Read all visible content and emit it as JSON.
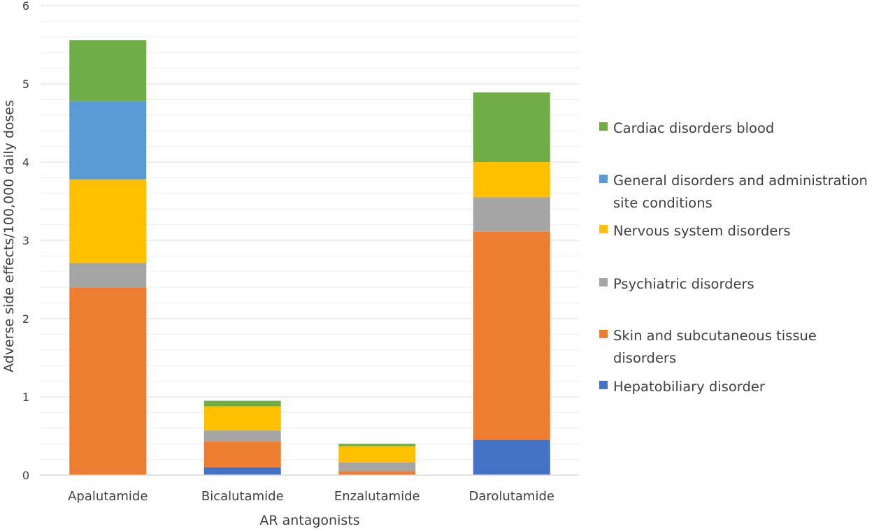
{
  "chart_data": {
    "type": "bar",
    "stacked": true,
    "title": "",
    "xlabel": "AR antagonists",
    "ylabel": "Adverse side effects/100,000 daily doses",
    "ylim": [
      0,
      6
    ],
    "yticks": [
      "0",
      "1",
      "2",
      "3",
      "4",
      "5",
      "6"
    ],
    "ytick_values": [
      0,
      1,
      2,
      3,
      4,
      5,
      6
    ],
    "grid": true,
    "legend_position": "right",
    "categories": [
      "Apalutamide",
      "Bicalutamide",
      "Enzalutamide",
      "Darolutamide"
    ],
    "series": [
      {
        "name": "Hepatobiliary disorder",
        "color": "#4472C4",
        "values": [
          0,
          0.1,
          0,
          0.45
        ]
      },
      {
        "name": "Skin and subcutaneous tissue disorders",
        "color": "#ED7D31",
        "values": [
          2.4,
          0.33,
          0.05,
          2.66
        ]
      },
      {
        "name": "Psychiatric disorders",
        "color": "#A5A5A5",
        "values": [
          0.31,
          0.14,
          0.11,
          0.44
        ]
      },
      {
        "name": "Nervous system disorders",
        "color": "#FFC000",
        "values": [
          1.07,
          0.31,
          0.21,
          0.45
        ]
      },
      {
        "name": "General disorders and administration site conditions",
        "color": "#5B9BD5",
        "values": [
          1.0,
          0,
          0,
          0
        ]
      },
      {
        "name": "Cardiac disorders blood",
        "color": "#70AD47",
        "values": [
          0.78,
          0.07,
          0.03,
          0.89
        ]
      }
    ],
    "legend_order": [
      {
        "series_index": 5,
        "lines": [
          "Cardiac disorders blood"
        ]
      },
      {
        "series_index": 4,
        "lines": [
          "General disorders and administration",
          "site conditions"
        ]
      },
      {
        "series_index": 3,
        "lines": [
          "Nervous system disorders"
        ]
      },
      {
        "series_index": 2,
        "lines": [
          "Psychiatric disorders"
        ]
      },
      {
        "series_index": 1,
        "lines": [
          "Skin and subcutaneous tissue",
          "disorders"
        ]
      },
      {
        "series_index": 0,
        "lines": [
          "Hepatobiliary disorder"
        ]
      }
    ]
  }
}
